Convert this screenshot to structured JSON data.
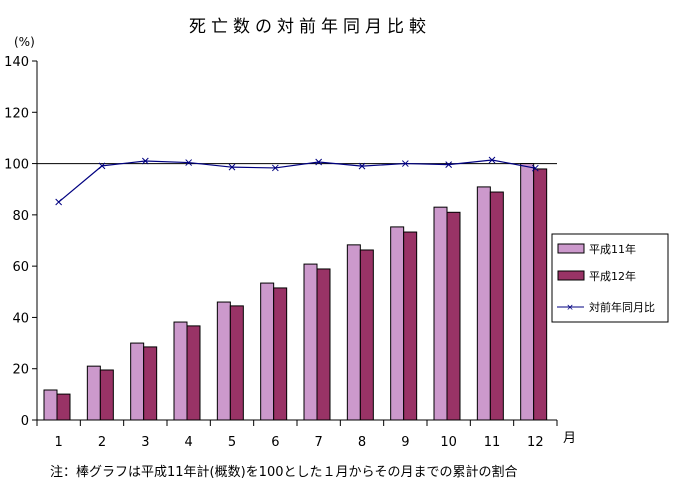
{
  "chart_data": {
    "type": "bar",
    "title": "死亡数の対前年同月比較",
    "ylabel": "(%)",
    "xlabel": "月",
    "ylim": [
      0,
      140
    ],
    "yticks": [
      0,
      20,
      40,
      60,
      80,
      100,
      120,
      140
    ],
    "categories": [
      "1",
      "2",
      "3",
      "4",
      "5",
      "6",
      "7",
      "8",
      "9",
      "10",
      "11",
      "12"
    ],
    "reference_line": 100,
    "series": [
      {
        "name": "平成11年",
        "kind": "bar",
        "color": "#cc99cc",
        "values": [
          11.7,
          21,
          30,
          38.2,
          46,
          53.4,
          60.8,
          68.3,
          75.3,
          83,
          90.9,
          100
        ]
      },
      {
        "name": "平成12年",
        "kind": "bar",
        "color": "#993366",
        "values": [
          10.1,
          19.5,
          28.5,
          36.7,
          44.5,
          51.5,
          58.9,
          66.3,
          73.3,
          81,
          88.9,
          97.9
        ]
      },
      {
        "name": "対前年同月比",
        "kind": "line",
        "marker": "x",
        "color": "#000080",
        "values": [
          85,
          99.1,
          101,
          100.4,
          98.6,
          98.3,
          100.6,
          99,
          100,
          99.6,
          101.4,
          98.2
        ]
      }
    ],
    "legend": "right",
    "grid": false,
    "note": "注：棒グラフは平成11年計(概数)を100とした１月からその月までの累計の割合"
  }
}
